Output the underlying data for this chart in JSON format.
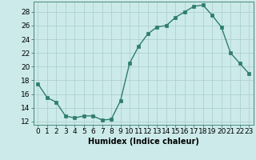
{
  "x": [
    0,
    1,
    2,
    3,
    4,
    5,
    6,
    7,
    8,
    9,
    10,
    11,
    12,
    13,
    14,
    15,
    16,
    17,
    18,
    19,
    20,
    21,
    22,
    23
  ],
  "y": [
    17.5,
    15.5,
    14.8,
    12.8,
    12.5,
    12.8,
    12.8,
    12.2,
    12.3,
    15.0,
    20.5,
    23.0,
    24.8,
    25.8,
    26.0,
    27.2,
    28.0,
    28.8,
    29.0,
    27.5,
    25.8,
    22.0,
    20.5,
    19.0
  ],
  "line_color": "#2e7d6e",
  "marker": "s",
  "markersize": 2.5,
  "linewidth": 1.0,
  "bg_color": "#cceaea",
  "grid_color": "#aacccc",
  "xlabel": "Humidex (Indice chaleur)",
  "xlabel_fontsize": 7,
  "xlabel_weight": "bold",
  "tick_fontsize": 6.5,
  "ylim": [
    11.5,
    29.5
  ],
  "xlim": [
    -0.5,
    23.5
  ],
  "yticks": [
    12,
    14,
    16,
    18,
    20,
    22,
    24,
    26,
    28
  ],
  "xticks": [
    0,
    1,
    2,
    3,
    4,
    5,
    6,
    7,
    8,
    9,
    10,
    11,
    12,
    13,
    14,
    15,
    16,
    17,
    18,
    19,
    20,
    21,
    22,
    23
  ]
}
